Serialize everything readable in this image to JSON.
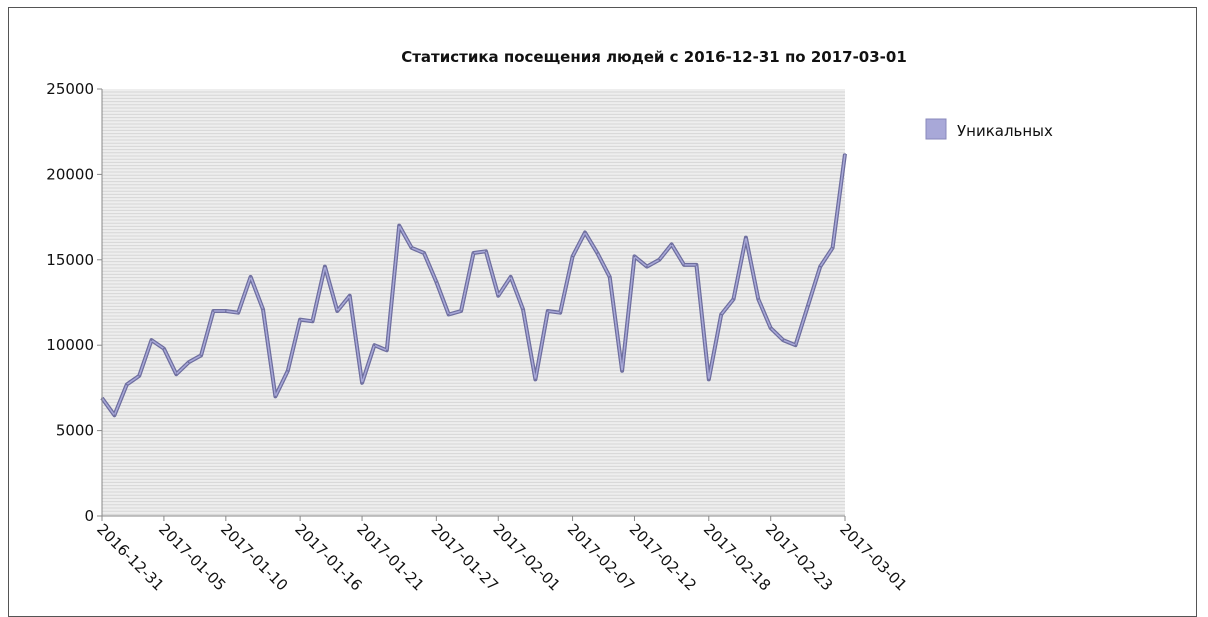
{
  "chart_data": {
    "type": "area",
    "title": "Статистика посещения людей с 2016-12-31 по 2017-03-01",
    "xlabel": "",
    "ylabel": "",
    "ylim": [
      0,
      25000
    ],
    "yticks": [
      "0",
      "5000",
      "10000",
      "15000",
      "20000",
      "25000"
    ],
    "xticks": [
      "2016-12-31",
      "2017-01-05",
      "2017-01-10",
      "2017-01-16",
      "2017-01-21",
      "2017-01-27",
      "2017-02-01",
      "2017-02-07",
      "2017-02-12",
      "2017-02-18",
      "2017-02-23",
      "2017-03-01"
    ],
    "grid": "horizontal",
    "legend": "right",
    "series": [
      {
        "name": "Уникальных",
        "color": "#a8a8d8",
        "line_color": "#6e6e9e",
        "x": [
          "2016-12-31",
          "2017-01-01",
          "2017-01-02",
          "2017-01-03",
          "2017-01-04",
          "2017-01-05",
          "2017-01-06",
          "2017-01-07",
          "2017-01-08",
          "2017-01-09",
          "2017-01-10",
          "2017-01-11",
          "2017-01-12",
          "2017-01-13",
          "2017-01-14",
          "2017-01-15",
          "2017-01-16",
          "2017-01-17",
          "2017-01-18",
          "2017-01-19",
          "2017-01-20",
          "2017-01-21",
          "2017-01-22",
          "2017-01-23",
          "2017-01-24",
          "2017-01-25",
          "2017-01-26",
          "2017-01-27",
          "2017-01-28",
          "2017-01-29",
          "2017-01-30",
          "2017-01-31",
          "2017-02-01",
          "2017-02-02",
          "2017-02-03",
          "2017-02-04",
          "2017-02-05",
          "2017-02-06",
          "2017-02-07",
          "2017-02-08",
          "2017-02-09",
          "2017-02-10",
          "2017-02-11",
          "2017-02-12",
          "2017-02-13",
          "2017-02-14",
          "2017-02-15",
          "2017-02-16",
          "2017-02-17",
          "2017-02-18",
          "2017-02-19",
          "2017-02-20",
          "2017-02-21",
          "2017-02-22",
          "2017-02-23",
          "2017-02-24",
          "2017-02-25",
          "2017-02-26",
          "2017-02-27",
          "2017-02-28",
          "2017-03-01"
        ],
        "values": [
          6900,
          5900,
          7700,
          8200,
          10300,
          9800,
          8300,
          9000,
          9400,
          12000,
          12000,
          11900,
          14000,
          12100,
          7000,
          8500,
          11500,
          11400,
          14600,
          12000,
          12900,
          7800,
          10000,
          9700,
          17000,
          15700,
          15400,
          13700,
          11800,
          12000,
          15400,
          15500,
          12900,
          14000,
          12100,
          8000,
          12000,
          11900,
          15200,
          16600,
          15400,
          14000,
          8500,
          15200,
          14600,
          15000,
          15900,
          14700,
          14700,
          8000,
          11800,
          12700,
          16300,
          12700,
          11000,
          10300,
          10000,
          12300,
          14600,
          15700,
          21200
        ]
      }
    ]
  }
}
